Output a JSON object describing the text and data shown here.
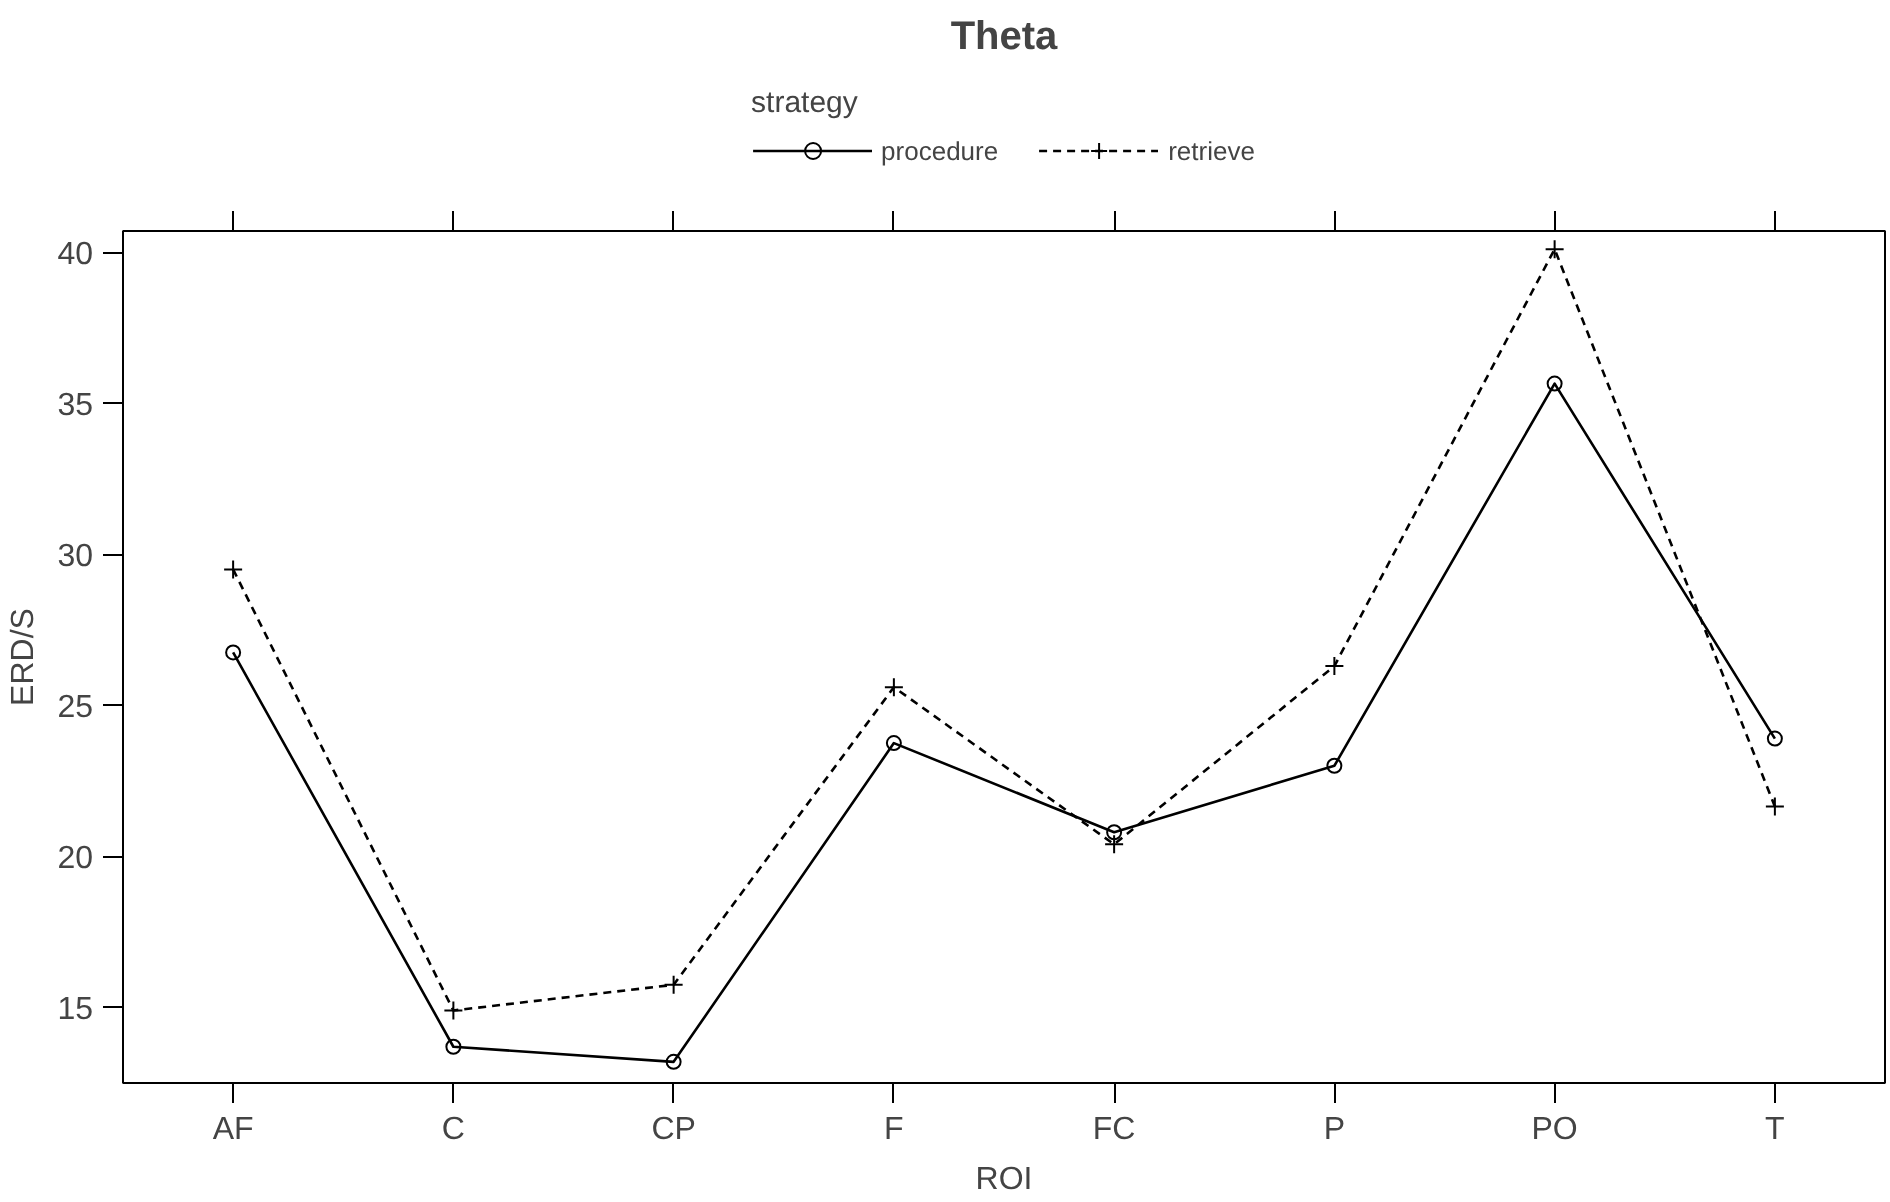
{
  "chart_data": {
    "type": "line",
    "title": "Theta",
    "xlabel": "ROI",
    "ylabel": "ERD/S",
    "legend_title": "strategy",
    "legend": "top",
    "grid": false,
    "categories": [
      "AF",
      "C",
      "CP",
      "F",
      "FC",
      "P",
      "PO",
      "T"
    ],
    "ylim": [
      12.5,
      40.7
    ],
    "yticks": [
      15,
      20,
      25,
      30,
      35,
      40
    ],
    "series": [
      {
        "name": "procedure",
        "color": "#000000",
        "marker": "circle",
        "line_style": "solid",
        "values": [
          26.75,
          13.7,
          13.2,
          23.75,
          20.8,
          23.0,
          35.65,
          23.9
        ]
      },
      {
        "name": "retrieve",
        "color": "#000000",
        "marker": "cross",
        "line_style": "dashed",
        "values": [
          29.5,
          14.9,
          15.75,
          25.6,
          20.4,
          26.3,
          40.1,
          21.65
        ]
      }
    ]
  }
}
